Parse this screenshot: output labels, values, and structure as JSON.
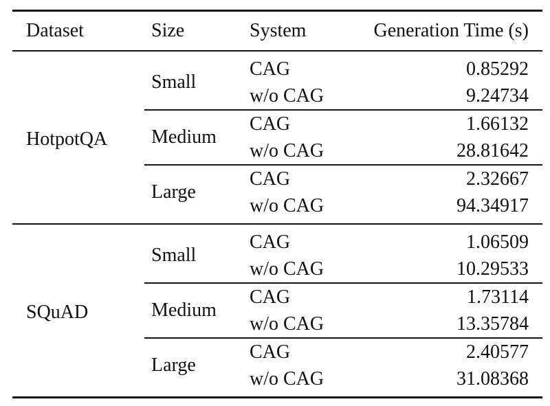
{
  "headers": {
    "dataset": "Dataset",
    "size": "Size",
    "system": "System",
    "time": "Generation Time (s)"
  },
  "groups": [
    {
      "dataset": "HotpotQA",
      "sizes": [
        {
          "size": "Small",
          "rows": [
            {
              "system": "CAG",
              "time": "0.85292"
            },
            {
              "system": "w/o CAG",
              "time": "9.24734"
            }
          ]
        },
        {
          "size": "Medium",
          "rows": [
            {
              "system": "CAG",
              "time": "1.66132"
            },
            {
              "system": "w/o CAG",
              "time": "28.81642"
            }
          ]
        },
        {
          "size": "Large",
          "rows": [
            {
              "system": "CAG",
              "time": "2.32667"
            },
            {
              "system": "w/o CAG",
              "time": "94.34917"
            }
          ]
        }
      ]
    },
    {
      "dataset": "SQuAD",
      "sizes": [
        {
          "size": "Small",
          "rows": [
            {
              "system": "CAG",
              "time": "1.06509"
            },
            {
              "system": "w/o CAG",
              "time": "10.29533"
            }
          ]
        },
        {
          "size": "Medium",
          "rows": [
            {
              "system": "CAG",
              "time": "1.73114"
            },
            {
              "system": "w/o CAG",
              "time": "13.35784"
            }
          ]
        },
        {
          "size": "Large",
          "rows": [
            {
              "system": "CAG",
              "time": "2.40577"
            },
            {
              "system": "w/o CAG",
              "time": "31.08368"
            }
          ]
        }
      ]
    }
  ]
}
